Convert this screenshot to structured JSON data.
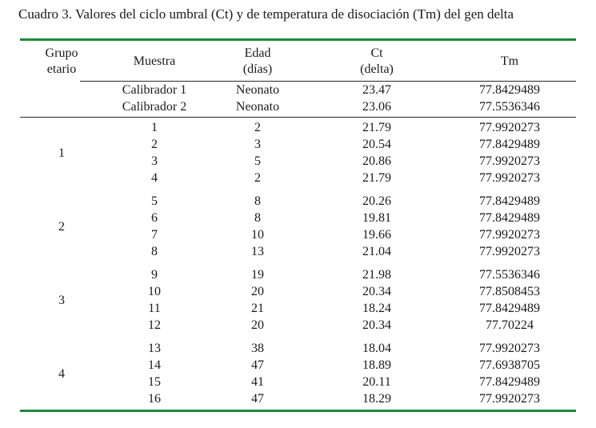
{
  "caption": "Cuadro 3. Valores del ciclo umbral (Ct) y de temperatura de disociación (Tm) del gen delta",
  "header": {
    "grupo": [
      "Grupo",
      "etario"
    ],
    "muestra": "Muestra",
    "edad": [
      "Edad",
      "(días)"
    ],
    "ct": [
      "Ct",
      "(delta)"
    ],
    "tm": "Tm"
  },
  "calibrators": [
    {
      "muestra": "Calibrador 1",
      "edad": "Neonato",
      "ct": "23.47",
      "tm": "77.8429489"
    },
    {
      "muestra": "Calibrador 2",
      "edad": "Neonato",
      "ct": "23.06",
      "tm": "77.5536346"
    }
  ],
  "groups": [
    {
      "label": "1",
      "rows": [
        {
          "muestra": "1",
          "edad": "2",
          "ct": "21.79",
          "tm": "77.9920273"
        },
        {
          "muestra": "2",
          "edad": "3",
          "ct": "20.54",
          "tm": "77.8429489"
        },
        {
          "muestra": "3",
          "edad": "5",
          "ct": "20.86",
          "tm": "77.9920273"
        },
        {
          "muestra": "4",
          "edad": "2",
          "ct": "21.79",
          "tm": "77.9920273"
        }
      ]
    },
    {
      "label": "2",
      "rows": [
        {
          "muestra": "5",
          "edad": "8",
          "ct": "20.26",
          "tm": "77.8429489"
        },
        {
          "muestra": "6",
          "edad": "8",
          "ct": "19.81",
          "tm": "77.8429489"
        },
        {
          "muestra": "7",
          "edad": "10",
          "ct": "19.66",
          "tm": "77.9920273"
        },
        {
          "muestra": "8",
          "edad": "13",
          "ct": "21.04",
          "tm": "77.9920273"
        }
      ]
    },
    {
      "label": "3",
      "rows": [
        {
          "muestra": "9",
          "edad": "19",
          "ct": "21.98",
          "tm": "77.5536346"
        },
        {
          "muestra": "10",
          "edad": "20",
          "ct": "20.34",
          "tm": "77.8508453"
        },
        {
          "muestra": "11",
          "edad": "21",
          "ct": "18.24",
          "tm": "77.8429489"
        },
        {
          "muestra": "12",
          "edad": "20",
          "ct": "20.34",
          "tm": "77.70224"
        }
      ]
    },
    {
      "label": "4",
      "rows": [
        {
          "muestra": "13",
          "edad": "38",
          "ct": "18.04",
          "tm": "77.9920273"
        },
        {
          "muestra": "14",
          "edad": "47",
          "ct": "18.89",
          "tm": "77.6938705"
        },
        {
          "muestra": "15",
          "edad": "41",
          "ct": "20.11",
          "tm": "77.8429489"
        },
        {
          "muestra": "16",
          "edad": "47",
          "ct": "18.29",
          "tm": "77.9920273"
        }
      ]
    }
  ]
}
